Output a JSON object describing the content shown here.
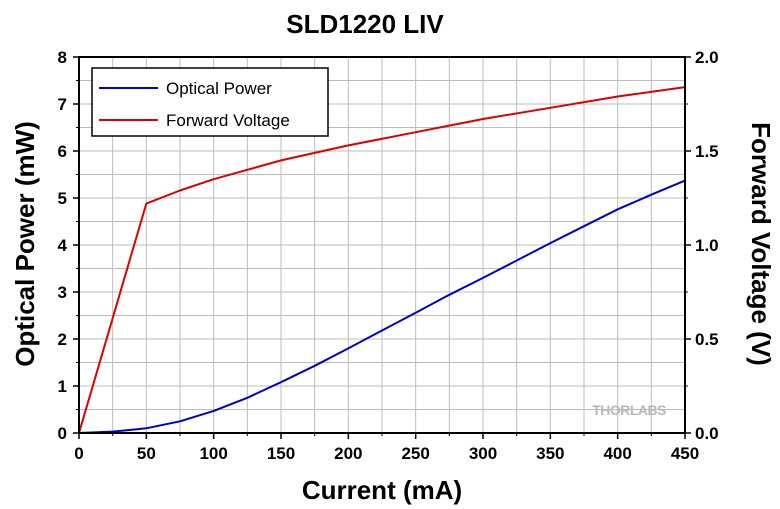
{
  "chart_data": {
    "type": "line",
    "title": "SLD1220 LIV",
    "xlabel": "Current (mA)",
    "ylabel": "Optical Power (mW)",
    "y2label": "Forward Voltage (V)",
    "xlim": [
      0,
      450
    ],
    "ylim": [
      0,
      8
    ],
    "y2lim": [
      0,
      2.0
    ],
    "xticks": [
      0,
      50,
      100,
      150,
      200,
      250,
      300,
      350,
      400,
      450
    ],
    "yticks": [
      0,
      1,
      2,
      3,
      4,
      5,
      6,
      7,
      8
    ],
    "y2ticks": [
      0.0,
      0.5,
      1.0,
      1.5,
      2.0
    ],
    "y2tick_labels": [
      "0.0",
      "0.5",
      "1.0",
      "1.5",
      "2.0"
    ],
    "grid": true,
    "legend_position": "top-left",
    "series": [
      {
        "name": "Optical Power",
        "color": "#0000cc",
        "axis": "left",
        "x": [
          0,
          25,
          50,
          75,
          100,
          125,
          150,
          175,
          200,
          225,
          250,
          275,
          300,
          325,
          350,
          375,
          400,
          425,
          450
        ],
        "y": [
          0,
          0.03,
          0.1,
          0.25,
          0.47,
          0.75,
          1.08,
          1.43,
          1.8,
          2.18,
          2.56,
          2.94,
          3.3,
          3.67,
          4.04,
          4.4,
          4.76,
          5.07,
          5.37
        ]
      },
      {
        "name": "Forward Voltage",
        "color": "#dd0000",
        "axis": "right",
        "x": [
          0,
          50,
          75,
          100,
          125,
          150,
          200,
          250,
          300,
          350,
          400,
          450
        ],
        "y": [
          0,
          1.22,
          1.29,
          1.35,
          1.4,
          1.45,
          1.53,
          1.6,
          1.67,
          1.73,
          1.79,
          1.84
        ]
      }
    ]
  },
  "watermark": "THORLABS"
}
